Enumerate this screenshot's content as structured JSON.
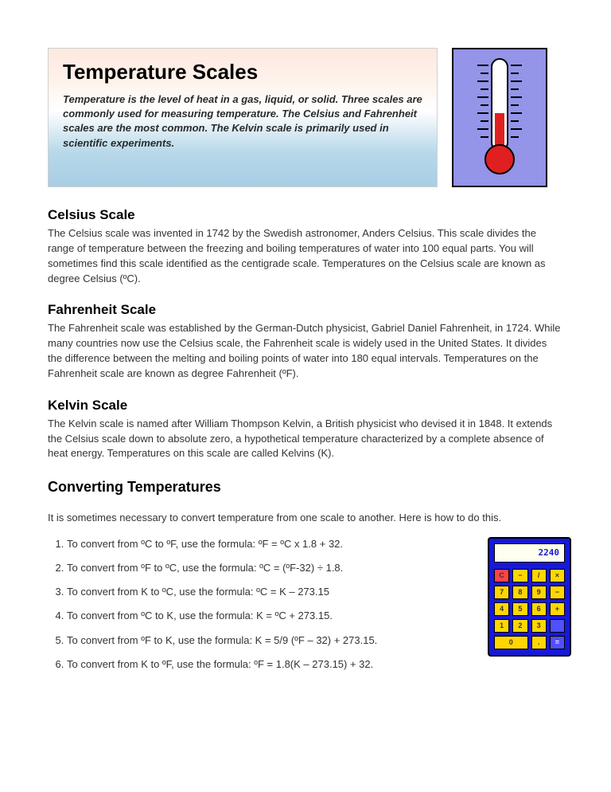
{
  "header": {
    "title": "Temperature Scales",
    "intro": "Temperature is the level of heat in a gas, liquid, or solid. Three scales are commonly used for measuring temperature. The Celsius and Fahrenheit scales are the most common. The Kelvin scale is primarily used in scientific experiments."
  },
  "thermometer": {
    "bg_color": "#9494e8",
    "fluid_color": "#e02020",
    "tube_color": "#ffffff"
  },
  "sections": [
    {
      "heading": "Celsius Scale",
      "body": "The Celsius scale was invented in 1742 by the Swedish astronomer, Anders Celsius. This scale divides the range of temperature between the freezing and boiling temperatures of water into 100 equal parts. You will sometimes find this scale identified as the centigrade scale. Temperatures on the Celsius scale are known as degree Celsius (ºC)."
    },
    {
      "heading": "Fahrenheit Scale",
      "body": "The Fahrenheit scale was established by the German-Dutch physicist, Gabriel Daniel Fahrenheit, in 1724. While many countries now use the Celsius scale, the Fahrenheit scale is widely used in the United States. It divides the difference between the melting and boiling points of water into 180 equal intervals. Temperatures on the Fahrenheit scale are known as degree Fahrenheit (ºF)."
    },
    {
      "heading": "Kelvin Scale",
      "body": "The Kelvin scale is named after William Thompson Kelvin, a British physicist who devised it in 1848. It extends the Celsius scale down to absolute zero, a hypothetical temperature characterized by a complete absence of heat energy. Temperatures on this scale are called Kelvins (K)."
    }
  ],
  "converting": {
    "title": "Converting Temperatures",
    "intro": "It is sometimes necessary to convert temperature from one scale to another. Here is how to do this.",
    "items": [
      "To convert from ºC to ºF, use the formula:  ºF = ºC x 1.8 + 32.",
      "To convert from ºF to ºC, use the formula:  ºC = (ºF-32) ÷ 1.8.",
      "To convert from K to ºC, use the formula:  ºC = K – 273.15",
      "To convert from ºC to K, use the formula: K = ºC + 273.15.",
      "To convert from ºF to K, use the formula: K = 5/9 (ºF – 32) + 273.15.",
      "To convert from K to ºF, use the formula:  ºF = 1.8(K – 273.15) + 32."
    ]
  },
  "calculator": {
    "display": "2240",
    "keys": [
      {
        "t": "C",
        "c": "red"
      },
      {
        "t": "−",
        "c": ""
      },
      {
        "t": "/",
        "c": ""
      },
      {
        "t": "×",
        "c": ""
      },
      {
        "t": "7",
        "c": ""
      },
      {
        "t": "8",
        "c": ""
      },
      {
        "t": "9",
        "c": ""
      },
      {
        "t": "−",
        "c": ""
      },
      {
        "t": "4",
        "c": ""
      },
      {
        "t": "5",
        "c": ""
      },
      {
        "t": "6",
        "c": ""
      },
      {
        "t": "+",
        "c": ""
      },
      {
        "t": "1",
        "c": ""
      },
      {
        "t": "2",
        "c": ""
      },
      {
        "t": "3",
        "c": ""
      },
      {
        "t": "",
        "c": "blue"
      },
      {
        "t": "0",
        "c": "wide"
      },
      {
        "t": ".",
        "c": ""
      },
      {
        "t": "=",
        "c": "blue"
      }
    ]
  }
}
